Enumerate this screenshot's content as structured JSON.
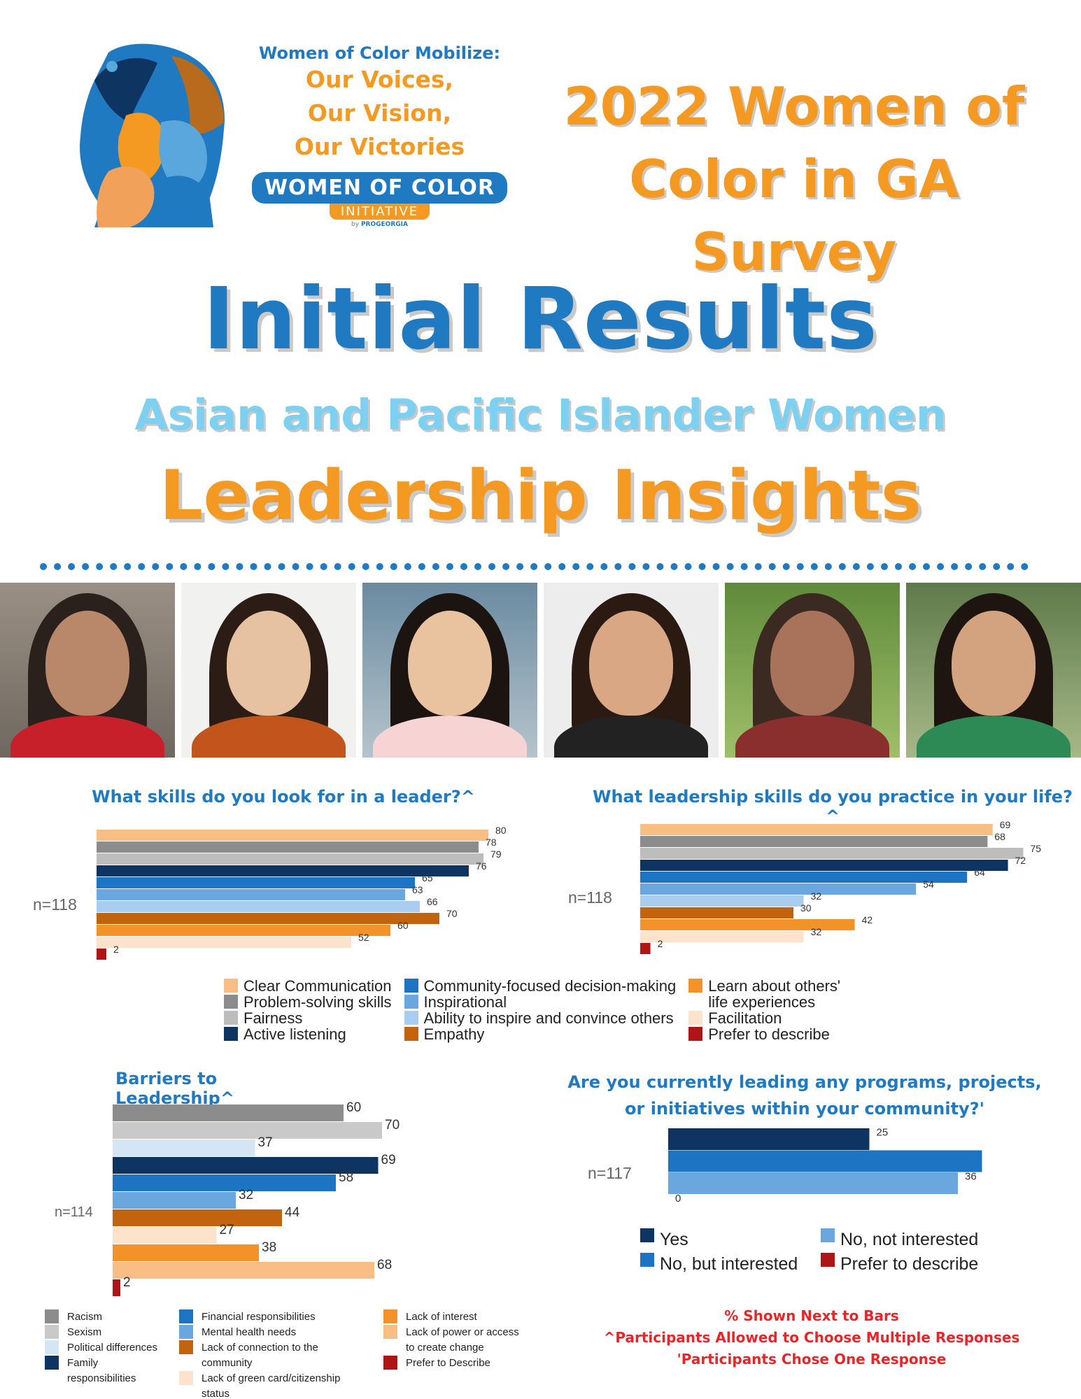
{
  "header": {
    "mobilize": "Women of Color Mobilize:",
    "voices_1": "Our Voices,",
    "voices_2": "Our Vision,",
    "voices_3": "Our Victories",
    "org_name": "WOMEN OF COLOR",
    "org_initiative": "INITIATIVE",
    "org_by": "by",
    "org_by_brand": "PROGEORGIA",
    "survey_title_1": "2022 Women of",
    "survey_title_2": "Color in GA Survey"
  },
  "titles": {
    "main": "Initial Results",
    "group": "Asian and Pacific Islander Women",
    "topic": "Leadership Insights"
  },
  "colors": {
    "blue": "#1f7ac1",
    "orange": "#f49a22",
    "light_blue": "#7dd0ef",
    "red": "#e8262a"
  },
  "legends": {
    "skills": [
      [
        {
          "label": "Clear Communication",
          "color": "#f8be84"
        },
        {
          "label": "Problem-solving skills",
          "color": "#8c8c8c"
        },
        {
          "label": "Fairness",
          "color": "#bdbdbd"
        },
        {
          "label": "Active listening",
          "color": "#0e3561"
        }
      ],
      [
        {
          "label": "Community-focused decision-making",
          "color": "#1c74c2"
        },
        {
          "label": "Inspirational",
          "color": "#6ba7df"
        },
        {
          "label": "Ability to inspire and convince others",
          "color": "#a8cdee"
        },
        {
          "label": "Empathy",
          "color": "#c2640f"
        }
      ],
      [
        {
          "label": "Learn about others' life experiences",
          "color": "#f4922a"
        },
        {
          "label": "Facilitation",
          "color": "#fde2cc"
        },
        {
          "label": "Prefer to describe",
          "color": "#b01515"
        }
      ]
    ],
    "barriers": [
      [
        {
          "label": "Racism",
          "color": "#8c8c8c"
        },
        {
          "label": "Sexism",
          "color": "#c9c9c9"
        },
        {
          "label": "Political differences",
          "color": "#d4e5f6"
        },
        {
          "label": "Family responsibilities",
          "color": "#0e3561"
        }
      ],
      [
        {
          "label": "Financial responsibilities",
          "color": "#1c74c2"
        },
        {
          "label": "Mental health needs",
          "color": "#6ba7df"
        },
        {
          "label": "Lack of connection to the community",
          "color": "#c2640f"
        },
        {
          "label": "Lack of green card/citizenship status",
          "color": "#fde2cc"
        }
      ],
      [
        {
          "label": "Lack of interest",
          "color": "#f4922a"
        },
        {
          "label": "Lack of power or access to create change",
          "color": "#f8be84"
        },
        {
          "label": "Prefer to Describe",
          "color": "#b01515"
        }
      ]
    ],
    "leading": [
      [
        {
          "label": "Yes",
          "color": "#0e3561"
        },
        {
          "label": "No, but interested",
          "color": "#1c74c2"
        }
      ],
      [
        {
          "label": "No, not interested",
          "color": "#6ba7df"
        },
        {
          "label": "Prefer to describe",
          "color": "#b01515"
        }
      ]
    ]
  },
  "chart_data": [
    {
      "type": "bar",
      "orientation": "horizontal",
      "title": "What skills do you look for in a leader?^",
      "n_label": "n=118",
      "unit": "%",
      "categories": [
        "Clear Communication",
        "Problem-solving skills",
        "Fairness",
        "Active listening",
        "Community-focused decision-making",
        "Inspirational",
        "Ability to inspire and convince others",
        "Empathy",
        "Learn about others' life experiences",
        "Facilitation",
        "Prefer to describe"
      ],
      "values": [
        80,
        78,
        79,
        76,
        65,
        63,
        66,
        70,
        60,
        52,
        2
      ],
      "colors": [
        "#f8be84",
        "#8c8c8c",
        "#bdbdbd",
        "#0e3561",
        "#1c74c2",
        "#6ba7df",
        "#a8cdee",
        "#c2640f",
        "#f4922a",
        "#fde2cc",
        "#b01515"
      ]
    },
    {
      "type": "bar",
      "orientation": "horizontal",
      "title": "What leadership skills do you practice in your life?^",
      "n_label": "n=118",
      "unit": "%",
      "categories": [
        "Clear Communication",
        "Problem-solving skills",
        "Fairness",
        "Active listening",
        "Community-focused decision-making",
        "Inspirational",
        "Ability to inspire and convince others",
        "Empathy",
        "Learn about others' life experiences",
        "Facilitation",
        "Prefer to describe"
      ],
      "values": [
        69,
        68,
        75,
        72,
        64,
        54,
        32,
        30,
        42,
        32,
        2
      ],
      "colors": [
        "#f8be84",
        "#8c8c8c",
        "#bdbdbd",
        "#0e3561",
        "#1c74c2",
        "#6ba7df",
        "#a8cdee",
        "#c2640f",
        "#f4922a",
        "#fde2cc",
        "#b01515"
      ]
    },
    {
      "type": "bar",
      "orientation": "horizontal",
      "title": "Barriers to Leadership^",
      "n_label": "n=114",
      "unit": "%",
      "categories": [
        "Racism",
        "Sexism",
        "Political differences",
        "Family responsibilities",
        "Financial responsibilities",
        "Mental health needs",
        "Lack of connection to the community",
        "Lack of green card/citizenship status",
        "Lack of interest",
        "Lack of power or access to create change",
        "Prefer to Describe"
      ],
      "values": [
        60,
        70,
        37,
        69,
        58,
        32,
        44,
        27,
        38,
        68,
        2
      ],
      "colors": [
        "#8c8c8c",
        "#c9c9c9",
        "#d4e5f6",
        "#0e3561",
        "#1c74c2",
        "#6ba7df",
        "#c2640f",
        "#fde2cc",
        "#f4922a",
        "#f8be84",
        "#b01515"
      ]
    },
    {
      "type": "bar",
      "orientation": "horizontal",
      "title": "Are you currently leading any programs, projects, or initiatives within your community?'",
      "n_label": "n=117",
      "unit": "%",
      "categories": [
        "Yes",
        "No, but interested",
        "No, not interested",
        "Prefer to describe"
      ],
      "values": [
        25,
        39,
        36,
        0
      ],
      "labels": [
        "25",
        "",
        "36",
        "0"
      ],
      "colors": [
        "#0e3561",
        "#1c74c2",
        "#6ba7df",
        "#b01515"
      ]
    }
  ],
  "footnotes": {
    "line_1": "% Shown Next to Bars",
    "line_2": "^Participants Allowed to Choose Multiple Responses",
    "line_3": "'Participants Chose One Response"
  }
}
